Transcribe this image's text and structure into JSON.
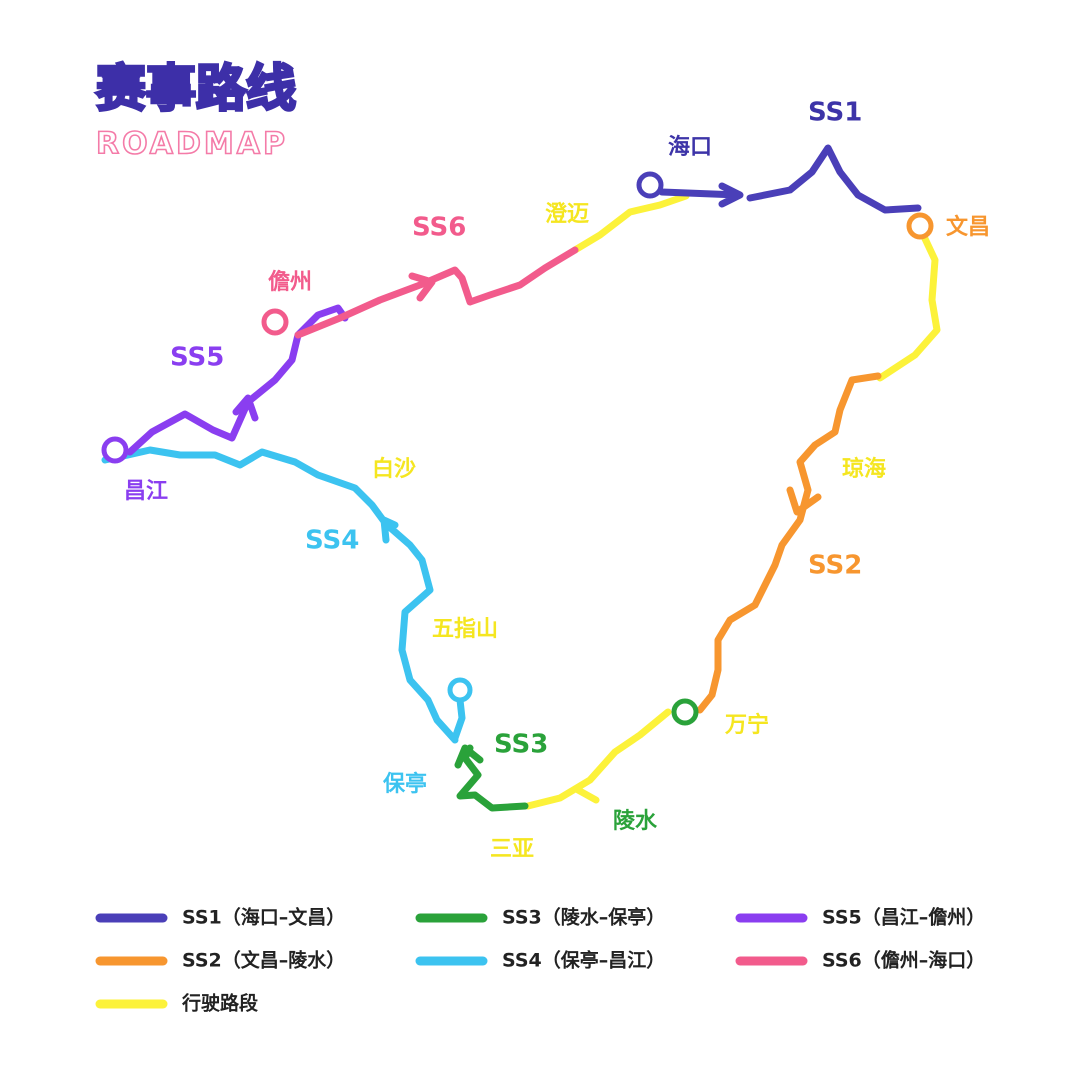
{
  "header": {
    "title": "赛事路线",
    "subtitle": "ROADMAP"
  },
  "places": [
    "海口",
    "文昌",
    "琼海",
    "万宁",
    "陵水",
    "三亚",
    "保亭",
    "五指山",
    "白沙",
    "昌江",
    "儋州",
    "澄迈"
  ],
  "stages": [
    "SS1",
    "SS2",
    "SS3",
    "SS4",
    "SS5",
    "SS6"
  ],
  "legend": [
    {
      "label": "SS1（海口–文昌）",
      "color": "#4a3fb8"
    },
    {
      "label": "SS2（文昌–陵水）",
      "color": "#f7962f"
    },
    {
      "label": "SS3（陵水–保亭）",
      "color": "#2aa23a"
    },
    {
      "label": "SS4（保亭–昌江）",
      "color": "#3cc3f0"
    },
    {
      "label": "SS5（昌江–儋州）",
      "color": "#8a3ef0"
    },
    {
      "label": "SS6（儋州–海口）",
      "color": "#f25b8c"
    },
    {
      "label": "行驶路段",
      "color": "#fcf23a"
    }
  ]
}
